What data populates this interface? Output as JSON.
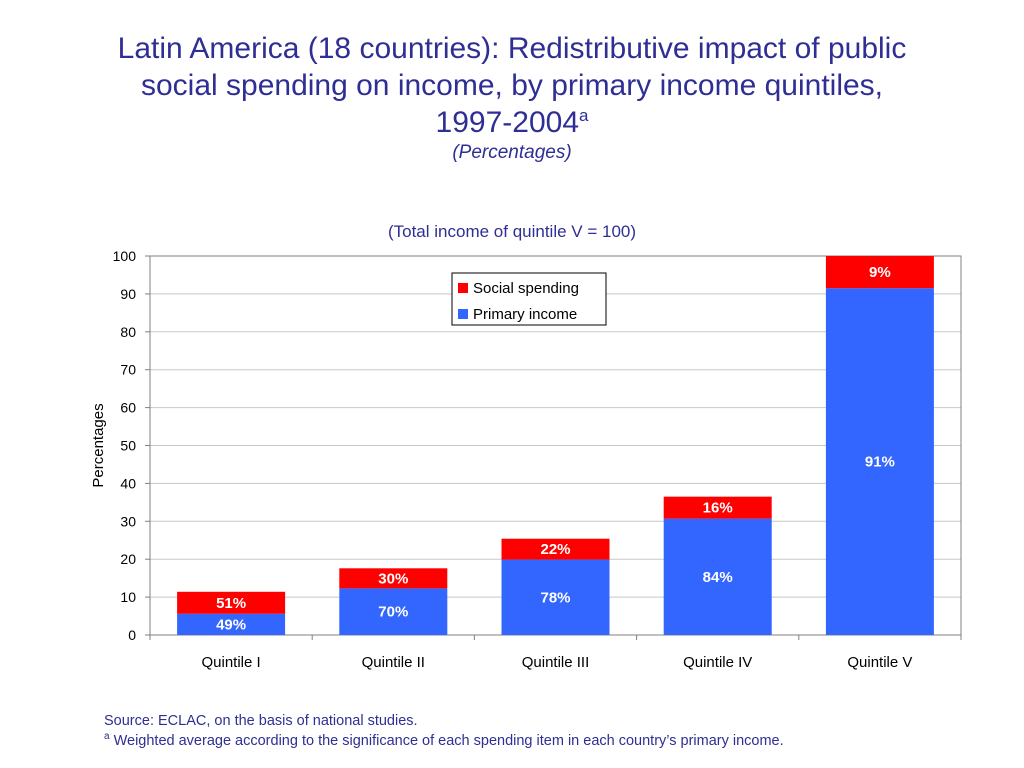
{
  "title": {
    "line1": "Latin America (18 countries): Redistributive impact of public",
    "line2": "social spending on income, by primary income quintiles,",
    "line3": "1997-2004",
    "superscript": "a",
    "subtitle": "(Percentages)"
  },
  "caption": "(Total income of quintile V = 100)",
  "footer": {
    "source": "Source: ECLAC, on the basis of national studies.",
    "note_marker": "a",
    "note": "Weighted average according to the significance of each spending item in each country’s primary income."
  },
  "colors": {
    "primary_income": "#3366ff",
    "social_spending": "#ff0000",
    "text": "#2e2e94"
  },
  "chart_data": {
    "type": "bar",
    "stacked": true,
    "categories": [
      "Quintile I",
      "Quintile II",
      "Quintile III",
      "Quintile IV",
      "Quintile V"
    ],
    "series": [
      {
        "name": "Primary income",
        "values": [
          5.6,
          12.3,
          19.9,
          30.7,
          91.5
        ],
        "labels": [
          "49%",
          "70%",
          "78%",
          "84%",
          "91%"
        ]
      },
      {
        "name": "Social spending",
        "values": [
          5.8,
          5.3,
          5.5,
          5.8,
          8.5
        ],
        "labels": [
          "51%",
          "30%",
          "22%",
          "16%",
          "9%"
        ]
      }
    ],
    "ylabel": "Percentages",
    "xlabel": "",
    "ylim": [
      0,
      100
    ],
    "yticks": [
      0,
      10,
      20,
      30,
      40,
      50,
      60,
      70,
      80,
      90,
      100
    ],
    "grid": true,
    "legend": "top-center",
    "legend_order": [
      "Social spending",
      "Primary income"
    ]
  }
}
